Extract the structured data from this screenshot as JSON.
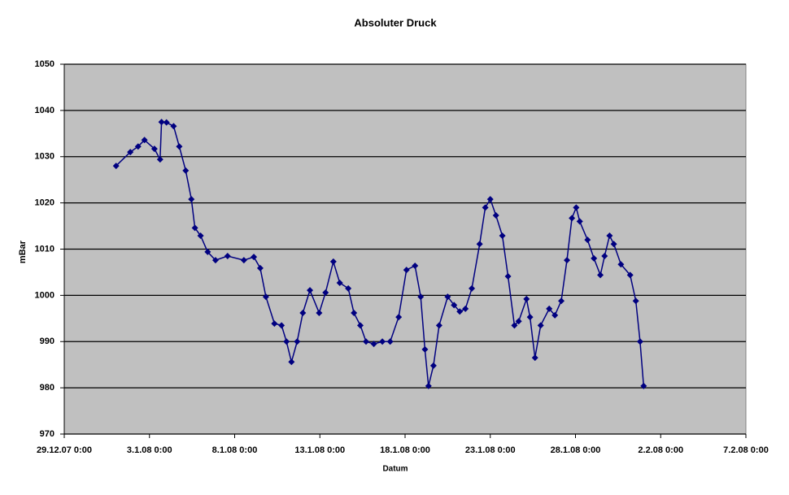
{
  "chart_data": {
    "type": "line",
    "title": "Absoluter Druck",
    "x_label": "Datum",
    "y_label": "mBar",
    "x": [
      "2008-01-01 01:00",
      "2008-01-01 21:00",
      "2008-01-02 08:00",
      "2008-01-02 17:00",
      "2008-01-03 07:00",
      "2008-01-03 15:00",
      "2008-01-03 17:00",
      "2008-01-04 00:00",
      "2008-01-04 10:00",
      "2008-01-04 18:00",
      "2008-01-05 03:00",
      "2008-01-05 11:00",
      "2008-01-05 16:00",
      "2008-01-06 00:00",
      "2008-01-06 10:00",
      "2008-01-06 21:00",
      "2008-01-07 14:00",
      "2008-01-08 13:00",
      "2008-01-09 03:00",
      "2008-01-09 12:00",
      "2008-01-09 20:00",
      "2008-01-10 08:00",
      "2008-01-10 18:00",
      "2008-01-11 01:00",
      "2008-01-11 08:00",
      "2008-01-11 16:00",
      "2008-01-12 00:00",
      "2008-01-12 10:00",
      "2008-01-12 23:00",
      "2008-01-13 08:00",
      "2008-01-13 19:00",
      "2008-01-14 04:00",
      "2008-01-14 16:00",
      "2008-01-15 00:00",
      "2008-01-15 09:00",
      "2008-01-15 17:00",
      "2008-01-16 04:00",
      "2008-01-16 16:00",
      "2008-01-17 03:00",
      "2008-01-17 15:00",
      "2008-01-18 02:00",
      "2008-01-18 14:00",
      "2008-01-18 22:00",
      "2008-01-19 04:00",
      "2008-01-19 09:00",
      "2008-01-19 16:00",
      "2008-01-20 00:00",
      "2008-01-20 12:00",
      "2008-01-20 21:00",
      "2008-01-21 05:00",
      "2008-01-21 13:00",
      "2008-01-21 22:00",
      "2008-01-22 09:00",
      "2008-01-22 17:00",
      "2008-01-23 00:00",
      "2008-01-23 08:00",
      "2008-01-23 17:00",
      "2008-01-24 01:00",
      "2008-01-24 10:00",
      "2008-01-24 16:00",
      "2008-01-25 03:00",
      "2008-01-25 08:00",
      "2008-01-25 15:00",
      "2008-01-25 23:00",
      "2008-01-26 11:00",
      "2008-01-26 19:00",
      "2008-01-27 04:00",
      "2008-01-27 12:00",
      "2008-01-27 19:00",
      "2008-01-28 01:00",
      "2008-01-28 06:00",
      "2008-01-28 17:00",
      "2008-01-29 02:00",
      "2008-01-29 11:00",
      "2008-01-29 17:00",
      "2008-01-30 00:00",
      "2008-01-30 06:00",
      "2008-01-30 16:00",
      "2008-01-31 05:00",
      "2008-01-31 13:00",
      "2008-01-31 19:00",
      "2008-02-01 00:00"
    ],
    "series": [
      {
        "name": "Absoluter Druck",
        "color": "#000080",
        "values": [
          1028.0,
          1031.0,
          1032.2,
          1033.6,
          1031.7,
          1029.4,
          1037.5,
          1037.4,
          1036.6,
          1032.2,
          1027.0,
          1020.8,
          1014.6,
          1012.9,
          1009.4,
          1007.6,
          1008.5,
          1007.6,
          1008.3,
          1005.9,
          999.7,
          993.9,
          993.5,
          990.0,
          985.6,
          990.0,
          996.2,
          1001.1,
          996.2,
          1000.6,
          1007.3,
          1002.7,
          1001.5,
          996.2,
          993.5,
          990.0,
          989.5,
          990.0,
          990.0,
          995.3,
          1005.5,
          1006.4,
          999.7,
          988.3,
          980.4,
          984.8,
          993.5,
          999.7,
          997.9,
          996.5,
          997.1,
          1001.5,
          1011.1,
          1019.0,
          1020.8,
          1017.3,
          1012.9,
          1004.1,
          993.5,
          994.4,
          999.2,
          995.3,
          986.5,
          993.5,
          997.1,
          995.7,
          998.8,
          1007.6,
          1016.7,
          1019.0,
          1016.0,
          1012.0,
          1008.0,
          1004.4,
          1008.5,
          1012.9,
          1011.1,
          1006.7,
          1004.4,
          998.8,
          990.0,
          980.4
        ]
      }
    ],
    "xlim": [
      "2007-12-29 00:00",
      "2008-02-07 00:00"
    ],
    "xticks": [
      {
        "value": "2007-12-29 00:00",
        "label": "29.12.07 0:00"
      },
      {
        "value": "2008-01-03 00:00",
        "label": "3.1.08 0:00"
      },
      {
        "value": "2008-01-08 00:00",
        "label": "8.1.08 0:00"
      },
      {
        "value": "2008-01-13 00:00",
        "label": "13.1.08 0:00"
      },
      {
        "value": "2008-01-18 00:00",
        "label": "18.1.08 0:00"
      },
      {
        "value": "2008-01-23 00:00",
        "label": "23.1.08 0:00"
      },
      {
        "value": "2008-01-28 00:00",
        "label": "28.1.08 0:00"
      },
      {
        "value": "2008-02-02 00:00",
        "label": "2.2.08 0:00"
      },
      {
        "value": "2008-02-07 00:00",
        "label": "7.2.08 0:00"
      }
    ],
    "ylim": [
      970,
      1050
    ],
    "yticks": [
      970,
      980,
      990,
      1000,
      1010,
      1020,
      1030,
      1040,
      1050
    ],
    "grid": true
  }
}
